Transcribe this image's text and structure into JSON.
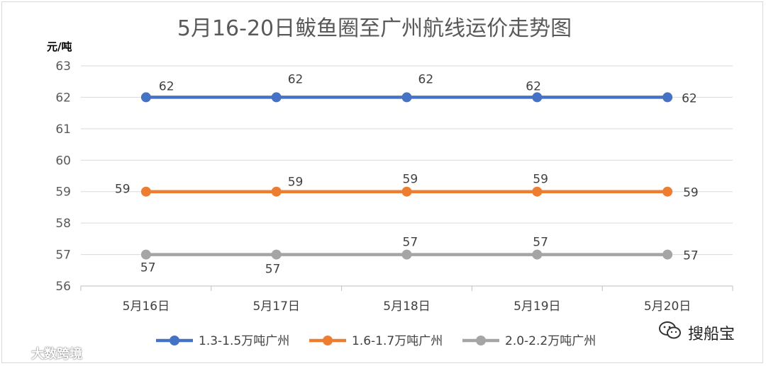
{
  "chart_data": {
    "type": "line",
    "title": "5月16-20日鲅鱼圈至广州航线运价走势图",
    "y_unit_label": "元/吨",
    "categories": [
      "5月16日",
      "5月17日",
      "5月18日",
      "5月19日",
      "5月20日"
    ],
    "ylim": [
      56,
      63
    ],
    "yticks": [
      56,
      57,
      58,
      59,
      60,
      61,
      62,
      63
    ],
    "grid": true,
    "legend_position": "bottom",
    "series": [
      {
        "name": "1.3-1.5万吨广州",
        "color": "#4472C4",
        "values": [
          62,
          62,
          62,
          62,
          62
        ]
      },
      {
        "name": "1.6-1.7万吨广州",
        "color": "#ED7D31",
        "values": [
          59,
          59,
          59,
          59,
          59
        ]
      },
      {
        "name": "2.0-2.2万吨广州",
        "color": "#A5A5A5",
        "values": [
          57,
          57,
          57,
          57,
          57
        ]
      }
    ]
  },
  "watermarks": {
    "left_text": "大数跨境",
    "right_text": "搜船宝",
    "left_icon": "logo-icon",
    "right_icon": "wechat-icon"
  }
}
